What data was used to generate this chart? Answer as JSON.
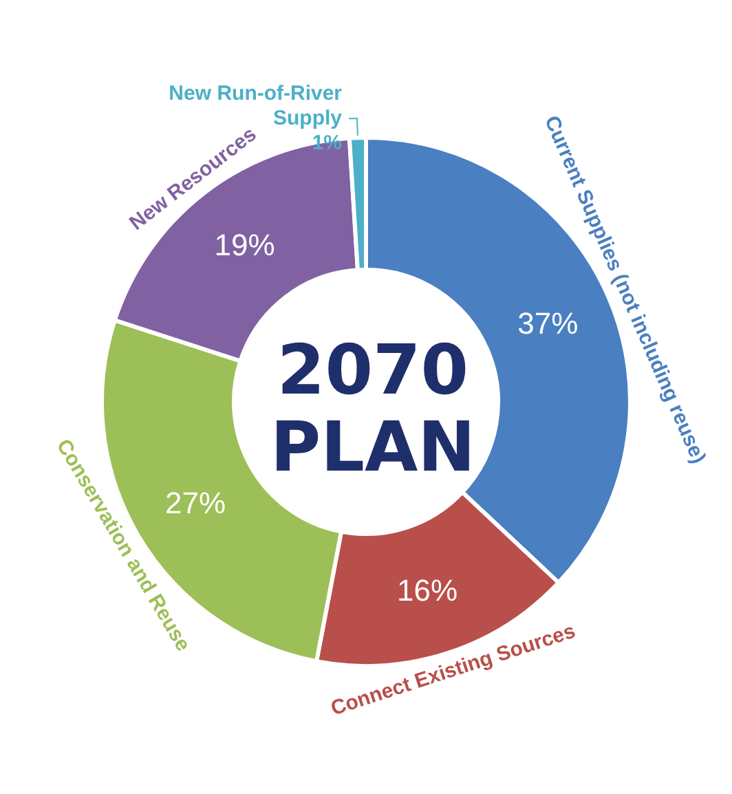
{
  "chart_data": {
    "type": "donut",
    "title": "2070\nPLAN",
    "categories": [
      "Current Supplies (not including reuse)",
      "Connect Existing Sources",
      "Conservation and Reuse",
      "New Resources",
      "New Run-of-River Supply"
    ],
    "values": [
      37,
      16,
      27,
      19,
      1
    ],
    "value_labels": [
      "37%",
      "16%",
      "27%",
      "19%",
      "1%"
    ],
    "colors": [
      "#4a7fc1",
      "#b94f4b",
      "#9dbf57",
      "#8062a3",
      "#4bb0c8"
    ],
    "legend": false
  }
}
